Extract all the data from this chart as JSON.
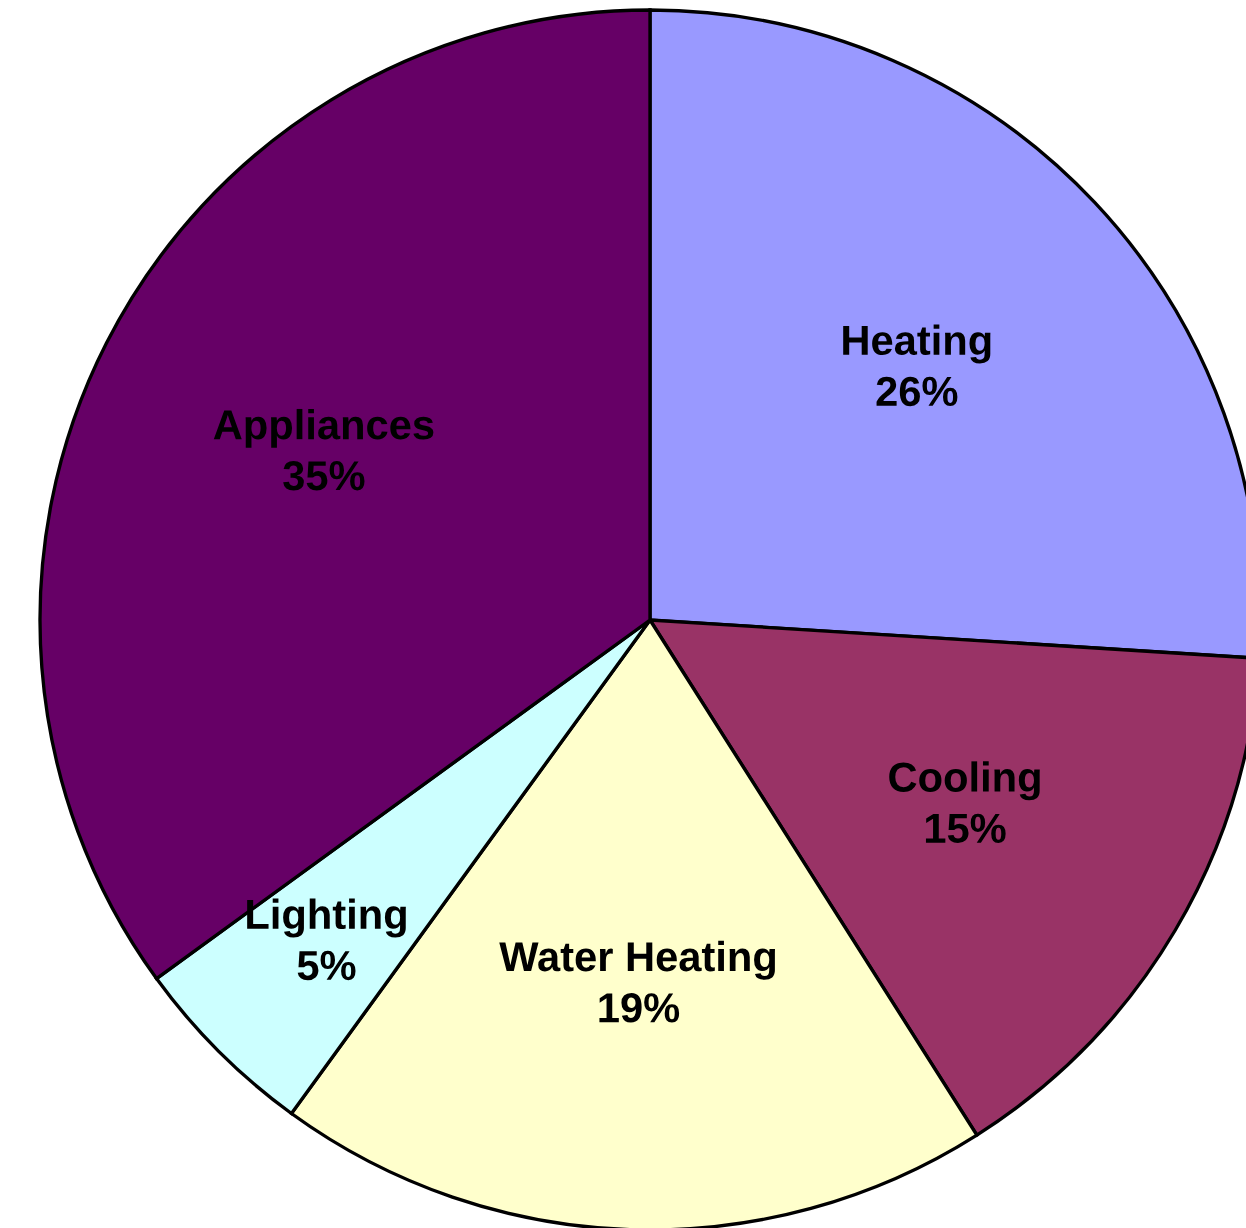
{
  "chart_data": {
    "type": "pie",
    "categories": [
      "Heating",
      "Cooling",
      "Water Heating",
      "Lighting",
      "Appliances"
    ],
    "values": [
      26,
      15,
      19,
      5,
      35
    ],
    "colors": [
      "#9999ff",
      "#993366",
      "#ffffcc",
      "#ccffff",
      "#660066"
    ],
    "value_labels": [
      "26%",
      "15%",
      "19%",
      "5%",
      "35%"
    ],
    "legend": false
  }
}
